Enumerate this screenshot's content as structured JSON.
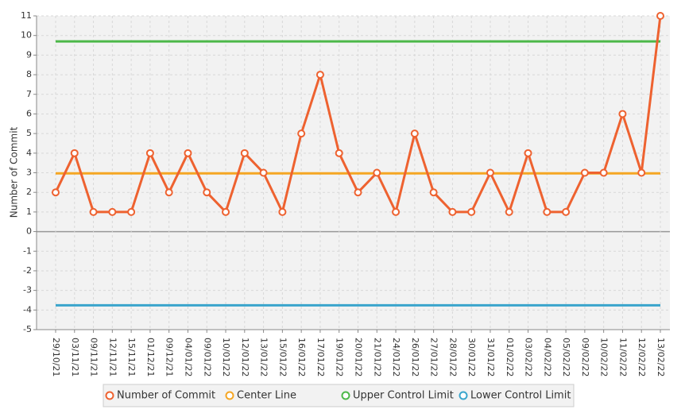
{
  "chart_data": {
    "type": "line",
    "y_label": "Number of Commit",
    "categories": [
      "29/10/21",
      "03/11/21",
      "09/11/21",
      "12/11/21",
      "15/11/21",
      "01/12/21",
      "09/12/21",
      "04/01/22",
      "09/01/22",
      "10/01/22",
      "12/01/22",
      "13/01/22",
      "15/01/22",
      "16/01/22",
      "17/01/22",
      "19/01/22",
      "20/01/22",
      "21/01/22",
      "24/01/22",
      "26/01/22",
      "27/01/22",
      "28/01/22",
      "30/01/22",
      "31/01/22",
      "01/02/22",
      "03/02/22",
      "04/02/22",
      "05/02/22",
      "09/02/22",
      "10/02/22",
      "11/02/22",
      "12/02/22",
      "13/02/22"
    ],
    "series": [
      {
        "name": "Number of Commit",
        "color": "#ee6230",
        "marker": true,
        "values": [
          2,
          4,
          1,
          1,
          1,
          4,
          2,
          4,
          2,
          1,
          4,
          3,
          1,
          5,
          8,
          4,
          2,
          3,
          1,
          5,
          2,
          1,
          1,
          3,
          1,
          4,
          1,
          1,
          3,
          3,
          6,
          3,
          11
        ]
      },
      {
        "name": "Center Line",
        "color": "#f5a623",
        "marker": false,
        "values": [
          2.97,
          2.97,
          2.97,
          2.97,
          2.97,
          2.97,
          2.97,
          2.97,
          2.97,
          2.97,
          2.97,
          2.97,
          2.97,
          2.97,
          2.97,
          2.97,
          2.97,
          2.97,
          2.97,
          2.97,
          2.97,
          2.97,
          2.97,
          2.97,
          2.97,
          2.97,
          2.97,
          2.97,
          2.97,
          2.97,
          2.97,
          2.97,
          2.97
        ]
      },
      {
        "name": "Upper Control Limit",
        "color": "#4cb849",
        "marker": false,
        "values": [
          9.7,
          9.7,
          9.7,
          9.7,
          9.7,
          9.7,
          9.7,
          9.7,
          9.7,
          9.7,
          9.7,
          9.7,
          9.7,
          9.7,
          9.7,
          9.7,
          9.7,
          9.7,
          9.7,
          9.7,
          9.7,
          9.7,
          9.7,
          9.7,
          9.7,
          9.7,
          9.7,
          9.7,
          9.7,
          9.7,
          9.7,
          9.7,
          9.7
        ]
      },
      {
        "name": "Lower Control Limit",
        "color": "#3aa5cc",
        "marker": false,
        "values": [
          -3.76,
          -3.76,
          -3.76,
          -3.76,
          -3.76,
          -3.76,
          -3.76,
          -3.76,
          -3.76,
          -3.76,
          -3.76,
          -3.76,
          -3.76,
          -3.76,
          -3.76,
          -3.76,
          -3.76,
          -3.76,
          -3.76,
          -3.76,
          -3.76,
          -3.76,
          -3.76,
          -3.76,
          -3.76,
          -3.76,
          -3.76,
          -3.76,
          -3.76,
          -3.76,
          -3.76,
          -3.76,
          -3.76
        ]
      }
    ],
    "ylim": [
      -5,
      11
    ],
    "yticks": [
      -5,
      -4,
      -3,
      -2,
      -1,
      0,
      1,
      2,
      3,
      4,
      5,
      6,
      7,
      8,
      9,
      10,
      11
    ],
    "grid": true,
    "legend": "bottom"
  }
}
